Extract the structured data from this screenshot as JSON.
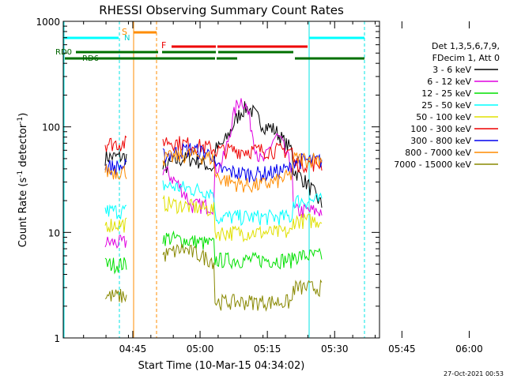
{
  "chart_data": {
    "type": "line",
    "title": "RHESSI Observing Summary Count Rates",
    "xlabel": "Start Time (10-Mar-15 04:34:02)",
    "ylabel_main": "Count Rate (s",
    "ylabel_sup1": "-1",
    "ylabel_mid": " detector",
    "ylabel_sup2": "-1",
    "ylabel_end": ")",
    "yscale": "log",
    "ylim": [
      1,
      1000
    ],
    "xlim_min": [
      -4.53,
      65.97
    ],
    "ytick_labels": [
      "1",
      "10",
      "100",
      "1000"
    ],
    "ytick_values": [
      1,
      10,
      100,
      1000
    ],
    "xtick_labels": [
      "04:45",
      "05:00",
      "05:15",
      "05:30",
      "05:45",
      "06:00"
    ],
    "xtick_values": [
      10.97,
      25.97,
      40.97,
      55.97,
      70.97,
      85.97
    ],
    "legend_header": [
      "Det 1,3,5,6,7,9,",
      "FDecim 1, Att 0"
    ],
    "series": [
      {
        "name": "3 - 6 keV",
        "color": "#000000"
      },
      {
        "name": "6 - 12 keV",
        "color": "#e000e0"
      },
      {
        "name": "12 - 25 keV",
        "color": "#00e000"
      },
      {
        "name": "25 - 50 keV",
        "color": "#00ffff"
      },
      {
        "name": "50 - 100 keV",
        "color": "#e0e000"
      },
      {
        "name": "100 - 300 keV",
        "color": "#ee0000"
      },
      {
        "name": "300 - 800 keV",
        "color": "#0000ee"
      },
      {
        "name": "800 - 7000 keV",
        "color": "#ff8c00"
      },
      {
        "name": "7000 - 15000 keV",
        "color": "#888800"
      }
    ],
    "annotations": {
      "saa_label": "S",
      "night_label": "N",
      "flare_label": "F",
      "rd0_label": "RD0",
      "rd6_label": "RD6"
    },
    "footer_timestamp": "27-Oct-2021 00:53"
  }
}
